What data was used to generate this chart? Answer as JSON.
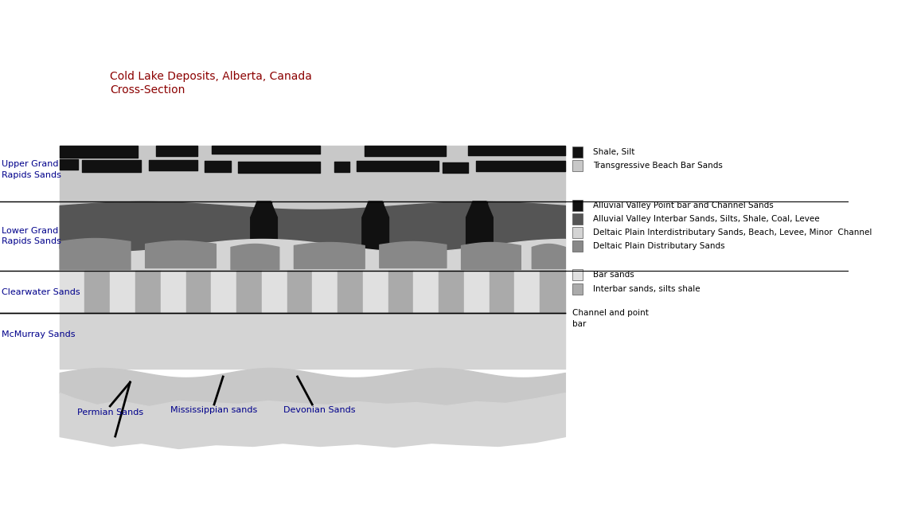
{
  "title_line1": "Cold Lake Deposits, Alberta, Canada",
  "title_line2": "Cross-Section",
  "title_color": "#8B0000",
  "bg_color": "#ffffff",
  "layer_labels": {
    "upper_grand_rapids": "Upper Grand\nRapids Sands",
    "lower_grand_rapids": "Lower Grand\nRapids Sands",
    "clearwater": "Clearwater Sands",
    "mcmurray": "McMurray Sands"
  },
  "label_color": "#00008B",
  "annotation_color": "#00008B",
  "colors": {
    "black": "#111111",
    "dark_gray": "#555555",
    "light_gray": "#c8c8c8",
    "medium_gray": "#888888",
    "very_light_gray": "#d4d4d4",
    "lighter_gray": "#e0e0e0",
    "interbar_gray": "#aaaaaa"
  },
  "legend_items": [
    {
      "label": "Shale, Silt",
      "color": "#111111"
    },
    {
      "label": "Transgressive Beach Bar Sands",
      "color": "#c8c8c8"
    },
    {
      "label": "Alluvial Valley Point bar and Channel Sands",
      "color": "#111111"
    },
    {
      "label": "Alluvial Valley Interbar Sands, Silts, Shale, Coal, Levee",
      "color": "#555555"
    },
    {
      "label": "Deltaic Plain Interdistributary Sands, Beach, Levee, Minor  Channel",
      "color": "#d4d4d4"
    },
    {
      "label": "Deltaic Plain Distributary Sands",
      "color": "#888888"
    },
    {
      "label": "Bar sands",
      "color": "#e0e0e0"
    },
    {
      "label": "Interbar sands, silts shale",
      "color": "#aaaaaa"
    },
    {
      "label": "Channel and point\nbar",
      "color": null
    }
  ]
}
